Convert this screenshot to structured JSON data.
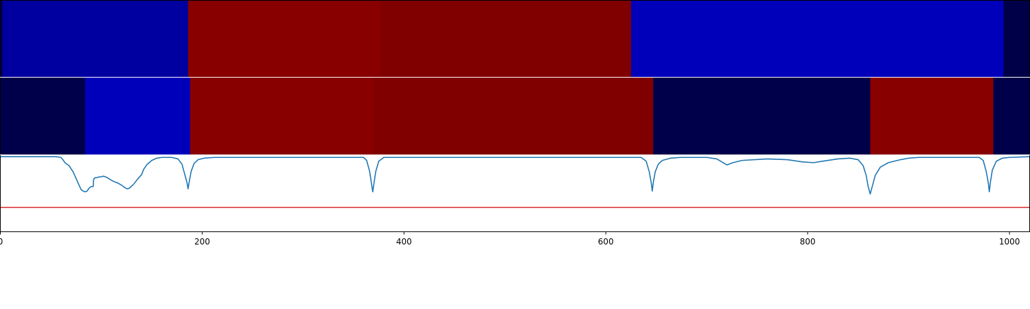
{
  "chart_data": {
    "type": "heatmap",
    "title": "",
    "xlabel": "",
    "ylabel": "",
    "xlim": [
      0,
      1020
    ],
    "x_ticks": [
      0,
      200,
      400,
      600,
      800,
      1000
    ],
    "x_tick_labels": [
      "0",
      "200",
      "400",
      "600",
      "800",
      "1000"
    ],
    "grid": false,
    "legend": "none",
    "tracks": [
      {
        "segments": [
          {
            "start": 0,
            "end": 2,
            "color": "#000048"
          },
          {
            "start": 2,
            "end": 186,
            "color": "#0000a0"
          },
          {
            "start": 186,
            "end": 376,
            "color": "#880000"
          },
          {
            "start": 376,
            "end": 625,
            "color": "#800000"
          },
          {
            "start": 625,
            "end": 994,
            "color": "#0000bb"
          },
          {
            "start": 994,
            "end": 1020,
            "color": "#000048"
          }
        ]
      },
      {
        "segments": [
          {
            "start": 0,
            "end": 84,
            "color": "#00004a"
          },
          {
            "start": 84,
            "end": 188,
            "color": "#0000bb"
          },
          {
            "start": 188,
            "end": 370,
            "color": "#880000"
          },
          {
            "start": 370,
            "end": 647,
            "color": "#800000"
          },
          {
            "start": 647,
            "end": 862,
            "color": "#00004a"
          },
          {
            "start": 862,
            "end": 984,
            "color": "#880000"
          },
          {
            "start": 984,
            "end": 1020,
            "color": "#00004a"
          }
        ]
      }
    ],
    "signal": {
      "color": "#1f77b4",
      "ylim": [
        -1.0,
        0.02
      ],
      "threshold": -0.68,
      "threshold_color": "#d62728",
      "points": [
        [
          0,
          0
        ],
        [
          55,
          0
        ],
        [
          60,
          -0.01
        ],
        [
          62,
          -0.04
        ],
        [
          64,
          -0.08
        ],
        [
          68,
          -0.12
        ],
        [
          72,
          -0.2
        ],
        [
          74,
          -0.26
        ],
        [
          76,
          -0.32
        ],
        [
          78,
          -0.38
        ],
        [
          80,
          -0.44
        ],
        [
          82,
          -0.46
        ],
        [
          84,
          -0.47
        ],
        [
          86,
          -0.46
        ],
        [
          88,
          -0.42
        ],
        [
          90,
          -0.4
        ],
        [
          92,
          -0.4
        ],
        [
          92.5,
          -0.3
        ],
        [
          94,
          -0.28
        ],
        [
          96,
          -0.28
        ],
        [
          98,
          -0.27
        ],
        [
          100,
          -0.27
        ],
        [
          102,
          -0.26
        ],
        [
          104,
          -0.27
        ],
        [
          106,
          -0.28
        ],
        [
          108,
          -0.3
        ],
        [
          112,
          -0.33
        ],
        [
          116,
          -0.35
        ],
        [
          120,
          -0.38
        ],
        [
          124,
          -0.42
        ],
        [
          126,
          -0.43
        ],
        [
          128,
          -0.42
        ],
        [
          132,
          -0.37
        ],
        [
          136,
          -0.3
        ],
        [
          140,
          -0.24
        ],
        [
          142,
          -0.17
        ],
        [
          145,
          -0.11
        ],
        [
          150,
          -0.05
        ],
        [
          155,
          -0.02
        ],
        [
          160,
          -0.01
        ],
        [
          170,
          -0.01
        ],
        [
          176,
          -0.03
        ],
        [
          180,
          -0.1
        ],
        [
          183,
          -0.25
        ],
        [
          185,
          -0.35
        ],
        [
          186,
          -0.43
        ],
        [
          187,
          -0.35
        ],
        [
          189,
          -0.2
        ],
        [
          192,
          -0.09
        ],
        [
          196,
          -0.04
        ],
        [
          202,
          -0.02
        ],
        [
          212,
          -0.01
        ],
        [
          225,
          -0.01
        ],
        [
          360,
          -0.01
        ],
        [
          363,
          -0.05
        ],
        [
          366,
          -0.2
        ],
        [
          368,
          -0.38
        ],
        [
          369,
          -0.47
        ],
        [
          370,
          -0.38
        ],
        [
          372,
          -0.2
        ],
        [
          375,
          -0.06
        ],
        [
          380,
          -0.01
        ],
        [
          635,
          -0.01
        ],
        [
          640,
          -0.06
        ],
        [
          643,
          -0.2
        ],
        [
          645,
          -0.35
        ],
        [
          646,
          -0.46
        ],
        [
          647,
          -0.35
        ],
        [
          649,
          -0.2
        ],
        [
          652,
          -0.1
        ],
        [
          656,
          -0.05
        ],
        [
          664,
          -0.02
        ],
        [
          674,
          -0.01
        ],
        [
          700,
          -0.01
        ],
        [
          710,
          -0.03
        ],
        [
          720,
          -0.11
        ],
        [
          726,
          -0.08
        ],
        [
          735,
          -0.05
        ],
        [
          760,
          -0.03
        ],
        [
          780,
          -0.04
        ],
        [
          795,
          -0.07
        ],
        [
          806,
          -0.08
        ],
        [
          815,
          -0.06
        ],
        [
          830,
          -0.03
        ],
        [
          842,
          -0.02
        ],
        [
          850,
          -0.04
        ],
        [
          855,
          -0.12
        ],
        [
          858,
          -0.25
        ],
        [
          860,
          -0.4
        ],
        [
          862,
          -0.5
        ],
        [
          864,
          -0.4
        ],
        [
          867,
          -0.25
        ],
        [
          872,
          -0.14
        ],
        [
          880,
          -0.08
        ],
        [
          892,
          -0.04
        ],
        [
          900,
          -0.02
        ],
        [
          910,
          -0.01
        ],
        [
          970,
          -0.01
        ],
        [
          974,
          -0.05
        ],
        [
          977,
          -0.2
        ],
        [
          979,
          -0.35
        ],
        [
          980,
          -0.47
        ],
        [
          981,
          -0.35
        ],
        [
          983,
          -0.18
        ],
        [
          987,
          -0.06
        ],
        [
          993,
          -0.02
        ],
        [
          1000,
          -0.01
        ],
        [
          1020,
          0
        ]
      ]
    }
  }
}
